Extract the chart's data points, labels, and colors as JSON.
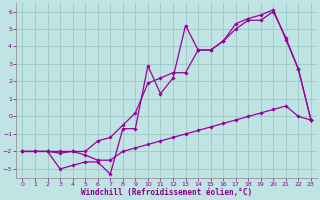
{
  "xlabel": "Windchill (Refroidissement éolien,°C)",
  "bg_color": "#c0e4e4",
  "grid_color": "#a0cccc",
  "line_color": "#990099",
  "xlim": [
    -0.5,
    23.5
  ],
  "ylim": [
    -3.5,
    6.5
  ],
  "xticks": [
    0,
    1,
    2,
    3,
    4,
    5,
    6,
    7,
    8,
    9,
    10,
    11,
    12,
    13,
    14,
    15,
    16,
    17,
    18,
    19,
    20,
    21,
    22,
    23
  ],
  "yticks": [
    -3,
    -2,
    -1,
    0,
    1,
    2,
    3,
    4,
    5,
    6
  ],
  "hours": [
    0,
    1,
    2,
    3,
    4,
    5,
    6,
    7,
    8,
    9,
    10,
    11,
    12,
    13,
    14,
    15,
    16,
    17,
    18,
    19,
    20,
    21,
    22,
    23
  ],
  "line1": [
    -2.0,
    -2.0,
    -2.0,
    -2.1,
    -2.0,
    -2.0,
    -1.4,
    -1.2,
    -0.5,
    0.2,
    1.9,
    2.2,
    2.5,
    2.5,
    3.8,
    3.8,
    4.3,
    5.0,
    5.5,
    5.5,
    6.0,
    4.5,
    2.7,
    -0.2
  ],
  "line2": [
    -2.0,
    -2.0,
    -2.0,
    -3.0,
    -2.8,
    -2.6,
    -2.6,
    -3.3,
    -0.7,
    -0.7,
    2.9,
    1.3,
    2.2,
    5.2,
    3.8,
    3.8,
    4.3,
    5.3,
    5.6,
    5.8,
    6.1,
    4.4,
    2.7,
    -0.2
  ],
  "line3": [
    -2.0,
    -2.0,
    -2.0,
    -2.0,
    -2.0,
    -2.2,
    -2.5,
    -2.5,
    -2.0,
    -1.8,
    -1.6,
    -1.4,
    -1.2,
    -1.0,
    -0.8,
    -0.6,
    -0.4,
    -0.2,
    0.0,
    0.2,
    0.4,
    0.6,
    0.0,
    -0.2
  ]
}
